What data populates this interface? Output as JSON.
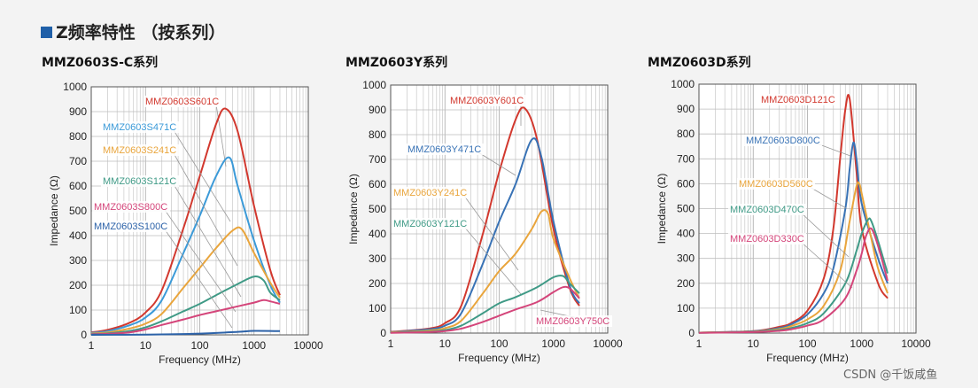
{
  "header": {
    "title": "Z频率特性 （按系列）"
  },
  "watermark": "CSDN @千饭咸鱼",
  "colors": {
    "red": "#d2382e",
    "blue": "#3b9ad8",
    "orange": "#e9a53c",
    "teal": "#3f9a86",
    "pink": "#d4457a",
    "navy": "#2c62a8",
    "dblue": "#3872b5"
  },
  "chart_data": [
    {
      "type": "line",
      "title": "MMZ0603S-C系列",
      "xlabel": "Frequency (MHz)",
      "ylabel": "Impedance (Ω)",
      "xscale": "log",
      "xlim": [
        1,
        10000
      ],
      "ylim": [
        0,
        1000
      ],
      "xticks": [
        "1",
        "10",
        "100",
        "1000",
        "10000"
      ],
      "yticks": [
        "0",
        "100",
        "200",
        "300",
        "400",
        "500",
        "600",
        "700",
        "800",
        "900",
        "1000"
      ],
      "series": [
        {
          "name": "MMZ0603S601C",
          "color": "red",
          "x": [
            1,
            2,
            5,
            10,
            20,
            50,
            100,
            200,
            300,
            500,
            1000,
            2000,
            3000
          ],
          "y": [
            10,
            20,
            48,
            90,
            180,
            430,
            640,
            850,
            912,
            820,
            520,
            260,
            160
          ]
        },
        {
          "name": "MMZ0603S471C",
          "color": "blue",
          "x": [
            1,
            2,
            5,
            10,
            20,
            50,
            100,
            200,
            350,
            500,
            1000,
            2000,
            3000
          ],
          "y": [
            8,
            15,
            38,
            70,
            140,
            330,
            480,
            640,
            715,
            600,
            380,
            200,
            130
          ]
        },
        {
          "name": "MMZ0603S241C",
          "color": "orange",
          "x": [
            1,
            2,
            5,
            10,
            20,
            50,
            100,
            200,
            400,
            600,
            1000,
            2000,
            3000
          ],
          "y": [
            5,
            10,
            25,
            45,
            85,
            190,
            270,
            350,
            420,
            425,
            330,
            210,
            150
          ]
        },
        {
          "name": "MMZ0603S121C",
          "color": "teal",
          "x": [
            1,
            2,
            5,
            10,
            20,
            50,
            100,
            200,
            500,
            1000,
            1500,
            2000,
            3000
          ],
          "y": [
            3,
            6,
            15,
            30,
            55,
            95,
            125,
            160,
            205,
            235,
            220,
            170,
            140
          ]
        },
        {
          "name": "MMZ0603S800C",
          "color": "pink",
          "x": [
            1,
            2,
            5,
            10,
            20,
            50,
            100,
            200,
            500,
            1000,
            1500,
            2000,
            3000
          ],
          "y": [
            2,
            4,
            10,
            22,
            40,
            62,
            80,
            95,
            115,
            130,
            140,
            135,
            125
          ]
        },
        {
          "name": "MMZ0603S100C",
          "color": "navy",
          "x": [
            1,
            10,
            100,
            500,
            1000,
            3000
          ],
          "y": [
            0,
            1,
            5,
            12,
            16,
            15
          ]
        }
      ],
      "annotations": [
        "MMZ0603S601C",
        "MMZ0603S471C",
        "MMZ0603S241C",
        "MMZ0603S121C",
        "MMZ0603S800C",
        "MMZ0603S100C"
      ]
    },
    {
      "type": "line",
      "title": "MMZ0603Y系列",
      "xlabel": "Frequency (MHz)",
      "ylabel": "Impedance (Ω)",
      "xscale": "log",
      "xlim": [
        1,
        10000
      ],
      "ylim": [
        0,
        1000
      ],
      "xticks": [
        "1",
        "10",
        "100",
        "1000",
        "10000"
      ],
      "yticks": [
        "0",
        "100",
        "200",
        "300",
        "400",
        "500",
        "600",
        "700",
        "800",
        "900",
        "1000"
      ],
      "series": [
        {
          "name": "MMZ0603Y601C",
          "color": "red",
          "x": [
            1,
            5,
            10,
            20,
            50,
            100,
            200,
            300,
            500,
            1000,
            2000,
            3000
          ],
          "y": [
            5,
            18,
            40,
            110,
            400,
            650,
            860,
            905,
            780,
            420,
            180,
            110
          ]
        },
        {
          "name": "MMZ0603Y471C",
          "color": "dblue",
          "x": [
            1,
            5,
            10,
            20,
            50,
            100,
            200,
            400,
            600,
            1000,
            2000,
            3000
          ],
          "y": [
            4,
            15,
            30,
            80,
            280,
            450,
            600,
            780,
            710,
            450,
            190,
            120
          ]
        },
        {
          "name": "MMZ0603Y241C",
          "color": "orange",
          "x": [
            1,
            5,
            10,
            20,
            50,
            100,
            200,
            400,
            600,
            800,
            1000,
            2000,
            3000
          ],
          "y": [
            3,
            10,
            20,
            50,
            160,
            250,
            320,
            420,
            490,
            480,
            380,
            220,
            140
          ]
        },
        {
          "name": "MMZ0603Y121C",
          "color": "teal",
          "x": [
            1,
            5,
            10,
            20,
            50,
            100,
            200,
            500,
            1000,
            1500,
            2000,
            3000
          ],
          "y": [
            2,
            6,
            12,
            30,
            80,
            120,
            145,
            185,
            225,
            230,
            200,
            160
          ]
        },
        {
          "name": "MMZ0603Y750C",
          "color": "pink",
          "x": [
            1,
            5,
            10,
            20,
            50,
            100,
            200,
            500,
            1000,
            1500,
            2000,
            3000
          ],
          "y": [
            1,
            4,
            8,
            18,
            45,
            70,
            95,
            125,
            165,
            185,
            180,
            140
          ]
        }
      ],
      "annotations": [
        "MMZ0603Y601C",
        "MMZ0603Y471C",
        "MMZ0603Y241C",
        "MMZ0603Y121C",
        "MMZ0603Y750C"
      ]
    },
    {
      "type": "line",
      "title": "MMZ0603D系列",
      "xlabel": "Frequency (MHz)",
      "ylabel": "Impedance (Ω)",
      "xscale": "log",
      "xlim": [
        1,
        10000
      ],
      "ylim": [
        0,
        1000
      ],
      "xticks": [
        "1",
        "10",
        "100",
        "1000",
        "10000"
      ],
      "yticks": [
        "0",
        "100",
        "200",
        "300",
        "400",
        "500",
        "600",
        "700",
        "800",
        "900",
        "1000"
      ],
      "series": [
        {
          "name": "MMZ0603D121C",
          "color": "red",
          "x": [
            1,
            10,
            30,
            50,
            100,
            200,
            300,
            400,
            500,
            600,
            800,
            1000,
            2000,
            3000
          ],
          "y": [
            2,
            8,
            25,
            40,
            90,
            220,
            420,
            700,
            900,
            940,
            650,
            420,
            200,
            140
          ]
        },
        {
          "name": "MMZ0603D800C",
          "color": "dblue",
          "x": [
            1,
            10,
            30,
            50,
            100,
            200,
            300,
            500,
            600,
            700,
            800,
            1000,
            2000,
            3000
          ],
          "y": [
            2,
            7,
            20,
            35,
            75,
            160,
            260,
            500,
            660,
            765,
            700,
            520,
            300,
            200
          ]
        },
        {
          "name": "MMZ0603D560C",
          "color": "orange",
          "x": [
            1,
            10,
            30,
            50,
            100,
            200,
            400,
            600,
            800,
            900,
            1000,
            1500,
            2000,
            3000
          ],
          "y": [
            2,
            6,
            16,
            28,
            55,
            110,
            250,
            450,
            590,
            600,
            560,
            380,
            260,
            160
          ]
        },
        {
          "name": "MMZ0603D470C",
          "color": "teal",
          "x": [
            1,
            10,
            30,
            50,
            100,
            200,
            500,
            800,
            1000,
            1300,
            1500,
            2000,
            3000
          ],
          "y": [
            1,
            5,
            12,
            20,
            40,
            80,
            200,
            330,
            400,
            455,
            450,
            370,
            240
          ]
        },
        {
          "name": "MMZ0603D330C",
          "color": "pink",
          "x": [
            1,
            10,
            30,
            50,
            100,
            200,
            500,
            800,
            1000,
            1200,
            1500,
            2000,
            3000
          ],
          "y": [
            1,
            4,
            9,
            15,
            30,
            55,
            140,
            250,
            320,
            390,
            420,
            350,
            210
          ]
        }
      ],
      "annotations": [
        "MMZ0603D121C",
        "MMZ0603D800C",
        "MMZ0603D560C",
        "MMZ0603D470C",
        "MMZ0603D330C"
      ]
    }
  ]
}
